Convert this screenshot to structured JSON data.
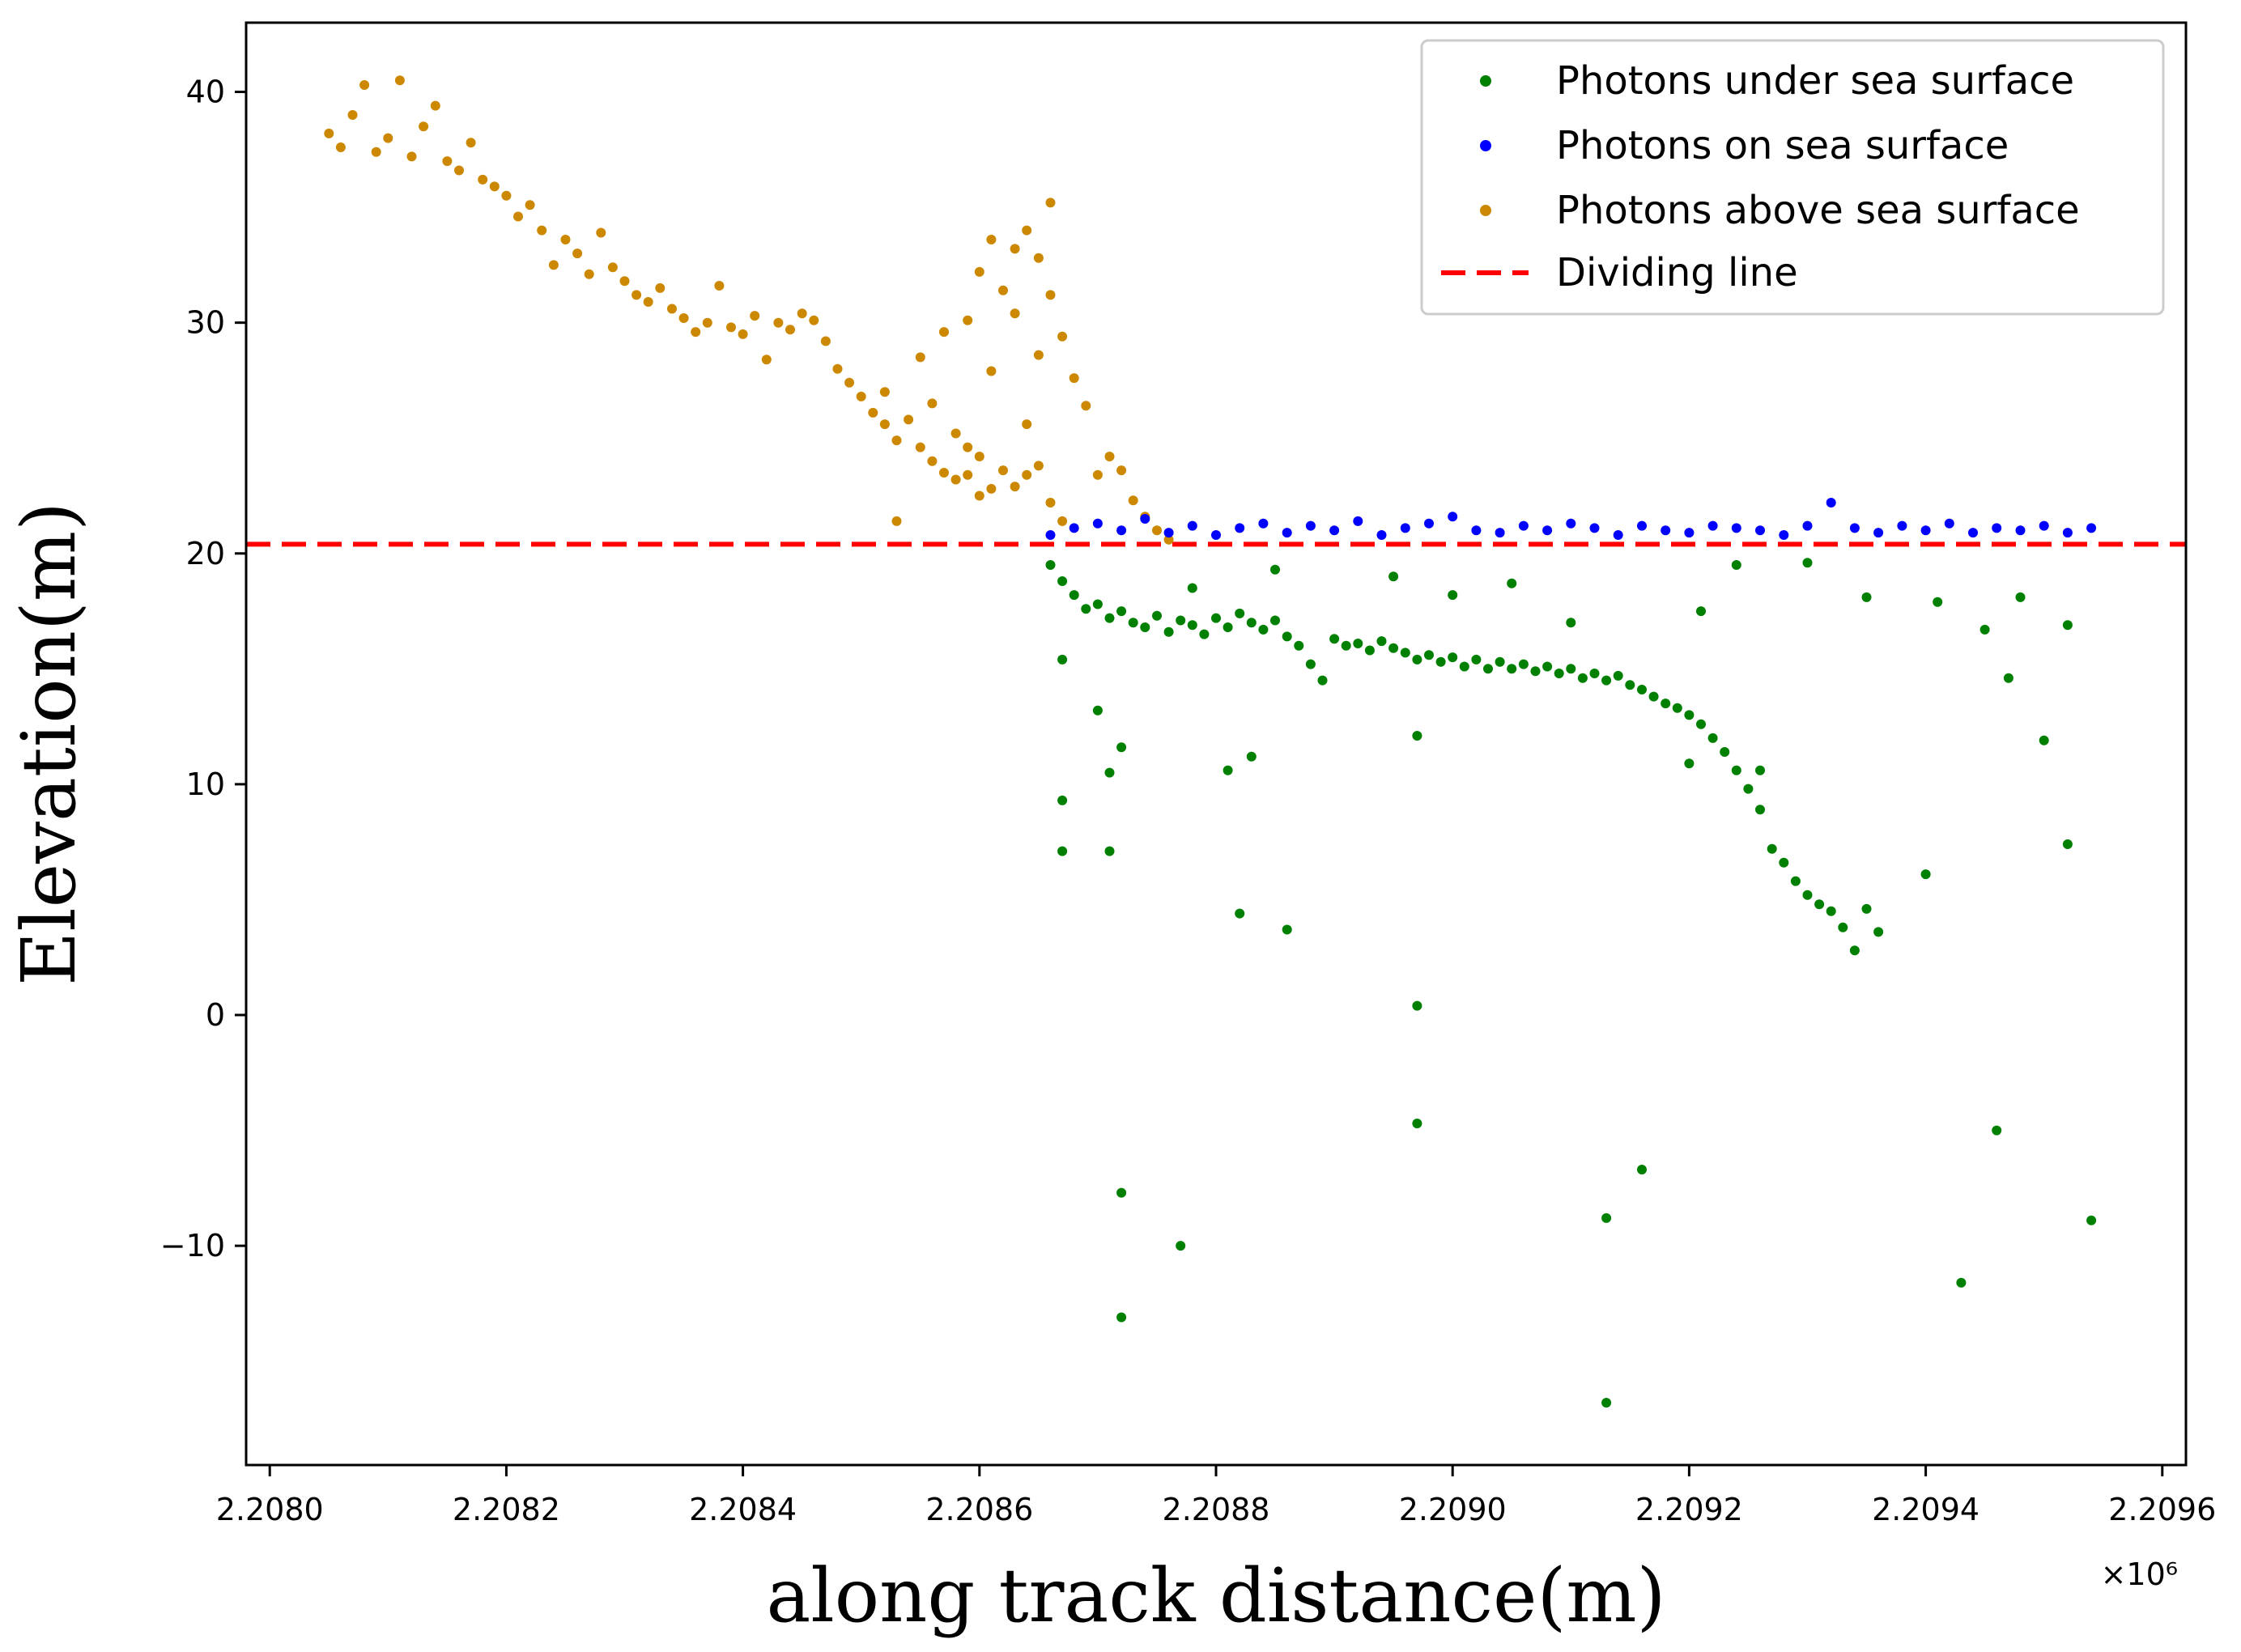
{
  "chart_data": {
    "type": "scatter",
    "title": "",
    "xlabel": "along track distance(m)",
    "ylabel": "Elevation(m)",
    "x_offset_label": "×10⁶",
    "xlim": [
      2.20798,
      2.20962
    ],
    "ylim": [
      -19.5,
      43
    ],
    "x_ticks": [
      2.208,
      2.2082,
      2.2084,
      2.2086,
      2.2088,
      2.209,
      2.2092,
      2.2094,
      2.2096
    ],
    "x_tick_labels": [
      "2.2080",
      "2.2082",
      "2.2084",
      "2.2086",
      "2.2088",
      "2.2090",
      "2.2092",
      "2.2094",
      "2.2096"
    ],
    "y_ticks": [
      -10,
      0,
      10,
      20,
      30,
      40
    ],
    "y_tick_labels": [
      "−10",
      "0",
      "10",
      "20",
      "30",
      "40"
    ],
    "grid": false,
    "legend": {
      "position": "upper right",
      "entries": [
        {
          "label": "Photons under sea surface",
          "color": "#008000",
          "kind": "marker"
        },
        {
          "label": "Photons on sea surface",
          "color": "#0000ff",
          "kind": "marker"
        },
        {
          "label": "Photons above sea surface",
          "color": "#cc8800",
          "kind": "marker"
        },
        {
          "label": "Dividing line",
          "color": "#ff0000",
          "kind": "dashed-line"
        }
      ]
    },
    "dividing_line": {
      "y": 20.4,
      "color": "#ff0000",
      "style": "dashed"
    },
    "series": [
      {
        "name": "Photons above sea surface",
        "color": "#cc8800",
        "points": [
          [
            2.20805,
            38.2
          ],
          [
            2.20806,
            37.6
          ],
          [
            2.20807,
            39.0
          ],
          [
            2.20808,
            40.3
          ],
          [
            2.20809,
            37.4
          ],
          [
            2.2081,
            38.0
          ],
          [
            2.20811,
            40.5
          ],
          [
            2.20812,
            37.2
          ],
          [
            2.20813,
            38.5
          ],
          [
            2.20814,
            39.4
          ],
          [
            2.20815,
            37.0
          ],
          [
            2.20816,
            36.6
          ],
          [
            2.20817,
            37.8
          ],
          [
            2.20818,
            36.2
          ],
          [
            2.20819,
            35.9
          ],
          [
            2.2082,
            35.5
          ],
          [
            2.20821,
            34.6
          ],
          [
            2.20822,
            35.1
          ],
          [
            2.20823,
            34.0
          ],
          [
            2.20824,
            32.5
          ],
          [
            2.20825,
            33.6
          ],
          [
            2.20826,
            33.0
          ],
          [
            2.20827,
            32.1
          ],
          [
            2.20828,
            33.9
          ],
          [
            2.20829,
            32.4
          ],
          [
            2.2083,
            31.8
          ],
          [
            2.20831,
            31.2
          ],
          [
            2.20832,
            30.9
          ],
          [
            2.20833,
            31.5
          ],
          [
            2.20834,
            30.6
          ],
          [
            2.20835,
            30.2
          ],
          [
            2.20836,
            29.6
          ],
          [
            2.20837,
            30.0
          ],
          [
            2.20838,
            31.6
          ],
          [
            2.20839,
            29.8
          ],
          [
            2.2084,
            29.5
          ],
          [
            2.20841,
            30.3
          ],
          [
            2.20842,
            28.4
          ],
          [
            2.20843,
            30.0
          ],
          [
            2.20844,
            29.7
          ],
          [
            2.20845,
            30.4
          ],
          [
            2.20846,
            30.1
          ],
          [
            2.20847,
            29.2
          ],
          [
            2.20848,
            28.0
          ],
          [
            2.20849,
            27.4
          ],
          [
            2.2085,
            26.8
          ],
          [
            2.20851,
            26.1
          ],
          [
            2.20852,
            25.6
          ],
          [
            2.20853,
            24.9
          ],
          [
            2.20854,
            25.8
          ],
          [
            2.20855,
            24.6
          ],
          [
            2.20856,
            24.0
          ],
          [
            2.20857,
            23.5
          ],
          [
            2.20858,
            23.2
          ],
          [
            2.20859,
            23.4
          ],
          [
            2.2086,
            24.2
          ],
          [
            2.20861,
            22.8
          ],
          [
            2.20862,
            23.6
          ],
          [
            2.20863,
            22.9
          ],
          [
            2.20864,
            23.4
          ],
          [
            2.20865,
            23.8
          ],
          [
            2.20866,
            22.2
          ],
          [
            2.20867,
            21.4
          ],
          [
            2.20852,
            27.0
          ],
          [
            2.20855,
            28.5
          ],
          [
            2.20857,
            29.6
          ],
          [
            2.20859,
            30.1
          ],
          [
            2.2086,
            32.2
          ],
          [
            2.20861,
            33.6
          ],
          [
            2.20862,
            31.4
          ],
          [
            2.20863,
            33.2
          ],
          [
            2.20864,
            34.0
          ],
          [
            2.20865,
            32.8
          ],
          [
            2.20866,
            31.2
          ],
          [
            2.20867,
            29.4
          ],
          [
            2.20856,
            26.5
          ],
          [
            2.20858,
            25.2
          ],
          [
            2.20861,
            27.9
          ],
          [
            2.20863,
            30.4
          ],
          [
            2.20865,
            28.6
          ],
          [
            2.20866,
            35.2
          ],
          [
            2.20864,
            25.6
          ],
          [
            2.2086,
            22.5
          ],
          [
            2.20868,
            27.6
          ],
          [
            2.20869,
            26.4
          ],
          [
            2.2087,
            23.4
          ],
          [
            2.20871,
            24.2
          ],
          [
            2.20872,
            23.6
          ],
          [
            2.20873,
            22.3
          ],
          [
            2.20874,
            21.6
          ],
          [
            2.20875,
            21.0
          ],
          [
            2.20876,
            20.6
          ],
          [
            2.20853,
            21.4
          ],
          [
            2.20859,
            24.6
          ]
        ]
      },
      {
        "name": "Photons on sea surface",
        "color": "#0000ff",
        "points": [
          [
            2.20866,
            20.8
          ],
          [
            2.20868,
            21.1
          ],
          [
            2.2087,
            21.3
          ],
          [
            2.20872,
            21.0
          ],
          [
            2.20874,
            21.5
          ],
          [
            2.20876,
            20.9
          ],
          [
            2.20878,
            21.2
          ],
          [
            2.2088,
            20.8
          ],
          [
            2.20882,
            21.1
          ],
          [
            2.20884,
            21.3
          ],
          [
            2.20886,
            20.9
          ],
          [
            2.20888,
            21.2
          ],
          [
            2.2089,
            21.0
          ],
          [
            2.20892,
            21.4
          ],
          [
            2.20894,
            20.8
          ],
          [
            2.20896,
            21.1
          ],
          [
            2.20898,
            21.3
          ],
          [
            2.209,
            21.6
          ],
          [
            2.20902,
            21.0
          ],
          [
            2.20904,
            20.9
          ],
          [
            2.20906,
            21.2
          ],
          [
            2.20908,
            21.0
          ],
          [
            2.2091,
            21.3
          ],
          [
            2.20912,
            21.1
          ],
          [
            2.20914,
            20.8
          ],
          [
            2.20916,
            21.2
          ],
          [
            2.20918,
            21.0
          ],
          [
            2.2092,
            20.9
          ],
          [
            2.20922,
            21.2
          ],
          [
            2.20924,
            21.1
          ],
          [
            2.20926,
            21.0
          ],
          [
            2.20928,
            20.8
          ],
          [
            2.2093,
            21.2
          ],
          [
            2.20932,
            22.2
          ],
          [
            2.20934,
            21.1
          ],
          [
            2.20936,
            20.9
          ],
          [
            2.20938,
            21.2
          ],
          [
            2.2094,
            21.0
          ],
          [
            2.20942,
            21.3
          ],
          [
            2.20944,
            20.9
          ],
          [
            2.20946,
            21.1
          ],
          [
            2.20948,
            21.0
          ],
          [
            2.2095,
            21.2
          ],
          [
            2.20952,
            20.9
          ],
          [
            2.20954,
            21.1
          ]
        ]
      },
      {
        "name": "Photons under sea surface",
        "color": "#008000",
        "points": [
          [
            2.20866,
            19.5
          ],
          [
            2.20867,
            18.8
          ],
          [
            2.20868,
            18.2
          ],
          [
            2.20869,
            17.6
          ],
          [
            2.2087,
            17.8
          ],
          [
            2.20871,
            17.2
          ],
          [
            2.20872,
            17.5
          ],
          [
            2.20873,
            17.0
          ],
          [
            2.20874,
            16.8
          ],
          [
            2.20875,
            17.3
          ],
          [
            2.20876,
            16.6
          ],
          [
            2.20877,
            17.1
          ],
          [
            2.20878,
            16.9
          ],
          [
            2.20879,
            16.5
          ],
          [
            2.2088,
            17.2
          ],
          [
            2.20881,
            16.8
          ],
          [
            2.20882,
            17.4
          ],
          [
            2.20883,
            17.0
          ],
          [
            2.20884,
            16.7
          ],
          [
            2.20885,
            17.1
          ],
          [
            2.20886,
            16.4
          ],
          [
            2.20887,
            16.0
          ],
          [
            2.20888,
            15.2
          ],
          [
            2.20889,
            14.5
          ],
          [
            2.2089,
            16.3
          ],
          [
            2.20891,
            16.0
          ],
          [
            2.20892,
            16.1
          ],
          [
            2.20893,
            15.8
          ],
          [
            2.20894,
            16.2
          ],
          [
            2.20895,
            15.9
          ],
          [
            2.20896,
            15.7
          ],
          [
            2.20897,
            15.4
          ],
          [
            2.20898,
            15.6
          ],
          [
            2.20899,
            15.3
          ],
          [
            2.209,
            15.5
          ],
          [
            2.20901,
            15.1
          ],
          [
            2.20902,
            15.4
          ],
          [
            2.20903,
            15.0
          ],
          [
            2.20904,
            15.3
          ],
          [
            2.20905,
            15.0
          ],
          [
            2.20906,
            15.2
          ],
          [
            2.20907,
            14.9
          ],
          [
            2.20908,
            15.1
          ],
          [
            2.20909,
            14.8
          ],
          [
            2.2091,
            15.0
          ],
          [
            2.20911,
            14.6
          ],
          [
            2.20912,
            14.8
          ],
          [
            2.20913,
            14.5
          ],
          [
            2.20914,
            14.7
          ],
          [
            2.20915,
            14.3
          ],
          [
            2.20916,
            14.1
          ],
          [
            2.20917,
            13.8
          ],
          [
            2.20918,
            13.5
          ],
          [
            2.20919,
            13.3
          ],
          [
            2.2092,
            13.0
          ],
          [
            2.20921,
            12.6
          ],
          [
            2.20922,
            12.0
          ],
          [
            2.20923,
            11.4
          ],
          [
            2.20924,
            10.6
          ],
          [
            2.20925,
            9.8
          ],
          [
            2.20926,
            8.9
          ],
          [
            2.20927,
            7.2
          ],
          [
            2.20928,
            6.6
          ],
          [
            2.20929,
            5.8
          ],
          [
            2.2093,
            5.2
          ],
          [
            2.20931,
            4.8
          ],
          [
            2.20932,
            4.5
          ],
          [
            2.20933,
            3.8
          ],
          [
            2.20934,
            2.8
          ],
          [
            2.20935,
            4.6
          ],
          [
            2.20867,
            15.4
          ],
          [
            2.20867,
            9.3
          ],
          [
            2.20867,
            7.1
          ],
          [
            2.2087,
            13.2
          ],
          [
            2.20871,
            10.5
          ],
          [
            2.20871,
            7.1
          ],
          [
            2.20872,
            11.6
          ],
          [
            2.20872,
            -7.7
          ],
          [
            2.20872,
            -13.1
          ],
          [
            2.20877,
            -10.0
          ],
          [
            2.20881,
            10.6
          ],
          [
            2.20882,
            4.4
          ],
          [
            2.20883,
            11.2
          ],
          [
            2.20886,
            3.7
          ],
          [
            2.20897,
            12.1
          ],
          [
            2.20897,
            0.4
          ],
          [
            2.20897,
            -4.7
          ],
          [
            2.20913,
            -8.8
          ],
          [
            2.20913,
            -16.8
          ],
          [
            2.20916,
            -6.7
          ],
          [
            2.2092,
            10.9
          ],
          [
            2.20926,
            10.6
          ],
          [
            2.20936,
            3.6
          ],
          [
            2.2094,
            6.1
          ],
          [
            2.20943,
            -11.6
          ],
          [
            2.20946,
            -5.0
          ],
          [
            2.20947,
            14.6
          ],
          [
            2.2095,
            11.9
          ],
          [
            2.20952,
            7.4
          ],
          [
            2.20954,
            -8.9
          ],
          [
            2.20952,
            16.9
          ],
          [
            2.20935,
            18.1
          ],
          [
            2.20924,
            19.5
          ],
          [
            2.2093,
            19.6
          ],
          [
            2.20905,
            18.7
          ],
          [
            2.20895,
            19.0
          ],
          [
            2.20885,
            19.3
          ],
          [
            2.20878,
            18.5
          ],
          [
            2.209,
            18.2
          ],
          [
            2.2091,
            17.0
          ],
          [
            2.20921,
            17.5
          ],
          [
            2.20941,
            17.9
          ],
          [
            2.20945,
            16.7
          ],
          [
            2.20948,
            18.1
          ]
        ]
      }
    ]
  }
}
